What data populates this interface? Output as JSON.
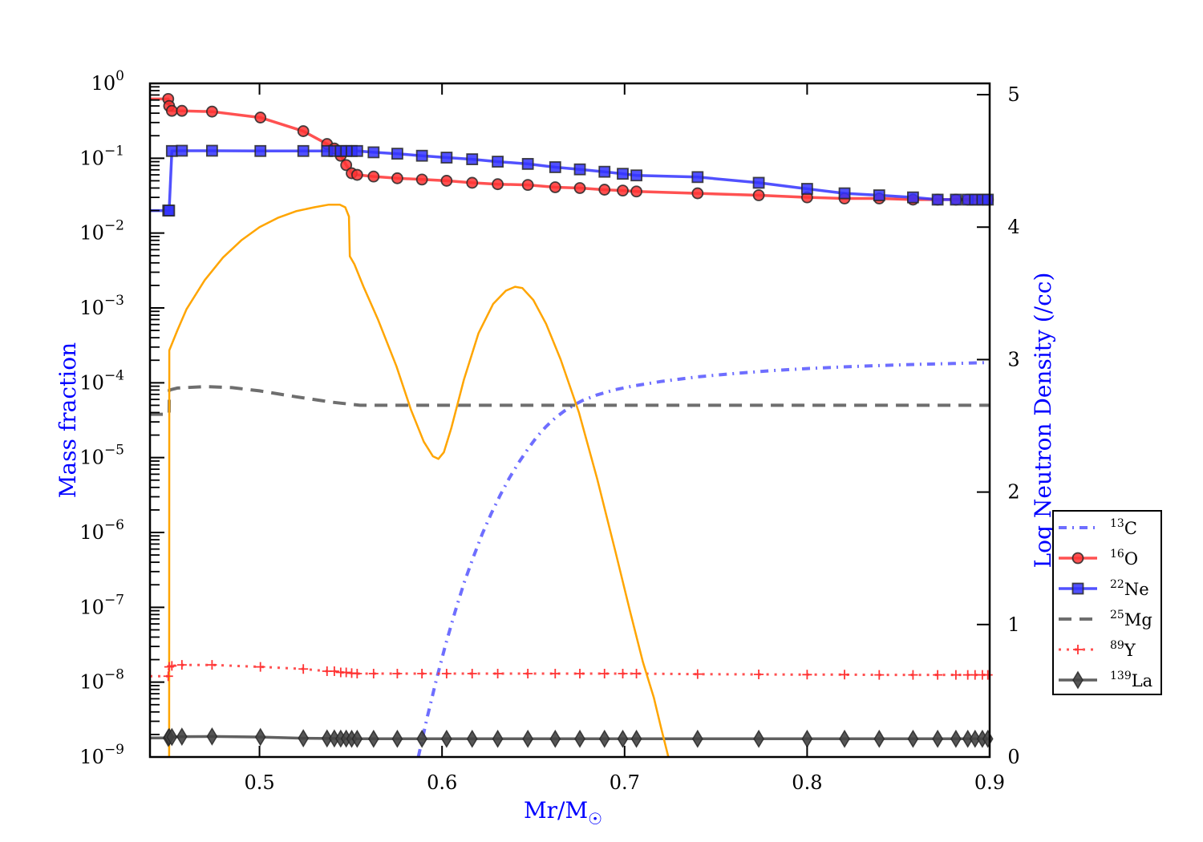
{
  "chart_data": {
    "type": "line",
    "title": "",
    "xlabel": "Mr/M",
    "xlabel_subscript": "☉",
    "ylabel_left": "Mass fraction",
    "ylabel_right": "Log Neutron Density (/cc)",
    "xlim": [
      0.44,
      0.9
    ],
    "ylim_left": [
      1e-09,
      1
    ],
    "yscale_left": "log",
    "ylim_right": [
      0,
      5.085
    ],
    "yscale_right": "linear",
    "grid": false,
    "legend_placement": "center-right-outside",
    "x_ticks": [
      "0.5",
      "0.6",
      "0.7",
      "0.8",
      "0.9"
    ],
    "x_tick_values": [
      0.5,
      0.6,
      0.7,
      0.8,
      0.9
    ],
    "y_left_ticks": [
      {
        "base": "10",
        "exp": "0",
        "value": 0
      },
      {
        "base": "10",
        "exp": "−1",
        "value": -1
      },
      {
        "base": "10",
        "exp": "−2",
        "value": -2
      },
      {
        "base": "10",
        "exp": "−3",
        "value": -3
      },
      {
        "base": "10",
        "exp": "−4",
        "value": -4
      },
      {
        "base": "10",
        "exp": "−5",
        "value": -5
      },
      {
        "base": "10",
        "exp": "−6",
        "value": -6
      },
      {
        "base": "10",
        "exp": "−7",
        "value": -7
      },
      {
        "base": "10",
        "exp": "−8",
        "value": -8
      },
      {
        "base": "10",
        "exp": "−9",
        "value": -9
      }
    ],
    "y_right_ticks": [
      "0",
      "1",
      "2",
      "3",
      "4",
      "5"
    ],
    "y_right_tick_values": [
      0,
      1,
      2,
      3,
      4,
      5
    ],
    "marker_x": [
      0.45,
      0.4505,
      0.452,
      0.4575,
      0.474,
      0.5005,
      0.524,
      0.537,
      0.541,
      0.5445,
      0.5475,
      0.5505,
      0.5535,
      0.5625,
      0.5755,
      0.589,
      0.6025,
      0.6165,
      0.6305,
      0.647,
      0.662,
      0.6755,
      0.689,
      0.699,
      0.7065,
      0.74,
      0.7735,
      0.8,
      0.8205,
      0.8395,
      0.858,
      0.8715,
      0.8815,
      0.888,
      0.892,
      0.896,
      0.899
    ],
    "series": [
      {
        "name": "13C",
        "label_sup": "13",
        "label_el": "C",
        "axis": "left",
        "color": "#5555ff",
        "style": "dashdot",
        "marker": "none",
        "x": [
          0.587,
          0.592,
          0.597,
          0.602,
          0.607,
          0.612,
          0.617,
          0.622,
          0.627,
          0.632,
          0.637,
          0.642,
          0.647,
          0.652,
          0.657,
          0.662,
          0.667,
          0.672,
          0.677,
          0.685,
          0.695,
          0.705,
          0.72,
          0.74,
          0.76,
          0.78,
          0.8,
          0.82,
          0.84,
          0.86,
          0.88,
          0.9
        ],
        "y": [
          1e-09,
          3.5e-09,
          1.1e-08,
          3.2e-08,
          8.5e-08,
          2.1e-07,
          4.6e-07,
          9.5e-07,
          1.8e-06,
          3.2e-06,
          5.4e-06,
          8.6e-06,
          1.3e-05,
          1.9e-05,
          2.6e-05,
          3.4e-05,
          4.2e-05,
          5e-05,
          5.8e-05,
          6.9e-05,
          8.1e-05,
          9.1e-05,
          0.000104,
          0.00012,
          0.000133,
          0.000145,
          0.000155,
          0.000163,
          0.00017,
          0.000176,
          0.000181,
          0.000187
        ]
      },
      {
        "name": "16O",
        "label_sup": "16",
        "label_el": "O",
        "axis": "left",
        "color": "#ff3333",
        "style": "solid",
        "marker": "circle",
        "x": [
          0.44,
          0.45,
          0.4505,
          0.452,
          0.4575,
          0.474,
          0.5005,
          0.524,
          0.537,
          0.541,
          0.5445,
          0.5475,
          0.5505,
          0.5535,
          0.5625,
          0.5755,
          0.589,
          0.6025,
          0.6165,
          0.6305,
          0.647,
          0.662,
          0.6755,
          0.689,
          0.699,
          0.7065,
          0.74,
          0.7735,
          0.8,
          0.8205,
          0.8395,
          0.858,
          0.8715,
          0.8815,
          0.888,
          0.892,
          0.896,
          0.899,
          0.9
        ],
        "y": [
          0.62,
          0.62,
          0.5,
          0.43,
          0.43,
          0.42,
          0.35,
          0.23,
          0.155,
          0.135,
          0.108,
          0.081,
          0.063,
          0.06,
          0.057,
          0.054,
          0.052,
          0.05,
          0.047,
          0.045,
          0.044,
          0.041,
          0.04,
          0.038,
          0.037,
          0.036,
          0.034,
          0.032,
          0.03,
          0.029,
          0.029,
          0.028,
          0.028,
          0.028,
          0.028,
          0.028,
          0.028,
          0.028,
          0.028
        ]
      },
      {
        "name": "22Ne",
        "label_sup": "22",
        "label_el": "Ne",
        "axis": "left",
        "color": "#3333ff",
        "style": "solid",
        "marker": "square",
        "x": [
          0.44,
          0.45,
          0.4505,
          0.452,
          0.4575,
          0.474,
          0.5005,
          0.524,
          0.537,
          0.541,
          0.5445,
          0.5475,
          0.5505,
          0.5535,
          0.5625,
          0.5755,
          0.589,
          0.6025,
          0.6165,
          0.6305,
          0.647,
          0.662,
          0.6755,
          0.689,
          0.699,
          0.7065,
          0.74,
          0.7735,
          0.8,
          0.8205,
          0.8395,
          0.858,
          0.8715,
          0.8815,
          0.888,
          0.892,
          0.896,
          0.899,
          0.9
        ],
        "y": [
          0.02,
          0.02,
          0.02,
          0.125,
          0.126,
          0.126,
          0.125,
          0.125,
          0.125,
          0.125,
          0.125,
          0.125,
          0.125,
          0.125,
          0.12,
          0.115,
          0.108,
          0.102,
          0.097,
          0.09,
          0.084,
          0.076,
          0.071,
          0.066,
          0.062,
          0.059,
          0.056,
          0.047,
          0.039,
          0.034,
          0.032,
          0.03,
          0.028,
          0.028,
          0.028,
          0.028,
          0.028,
          0.028,
          0.028
        ]
      },
      {
        "name": "25Mg",
        "label_sup": "25",
        "label_el": "Mg",
        "axis": "left",
        "color": "#555555",
        "style": "dashed",
        "marker": "none",
        "x": [
          0.44,
          0.4505,
          0.4506,
          0.455,
          0.47,
          0.485,
          0.5,
          0.52,
          0.54,
          0.555,
          0.57,
          0.6,
          0.7,
          0.8,
          0.9
        ],
        "y": [
          3.8e-05,
          3.8e-05,
          8e-05,
          8.5e-05,
          8.9e-05,
          8.6e-05,
          7.8e-05,
          6.5e-05,
          5.5e-05,
          5e-05,
          5e-05,
          5e-05,
          5e-05,
          5e-05,
          5e-05
        ]
      },
      {
        "name": "89Y",
        "label_sup": "89",
        "label_el": "Y",
        "axis": "left",
        "color": "#ff3333",
        "style": "dotted",
        "marker": "plus",
        "x": [
          0.44,
          0.45,
          0.4505,
          0.452,
          0.4575,
          0.474,
          0.5005,
          0.524,
          0.537,
          0.541,
          0.5445,
          0.5475,
          0.5505,
          0.5535,
          0.5625,
          0.5755,
          0.589,
          0.6025,
          0.6165,
          0.6305,
          0.647,
          0.662,
          0.6755,
          0.689,
          0.699,
          0.7065,
          0.74,
          0.7735,
          0.8,
          0.8205,
          0.8395,
          0.858,
          0.8715,
          0.8815,
          0.888,
          0.892,
          0.896,
          0.899,
          0.9
        ],
        "y": [
          1.2e-08,
          1.2e-08,
          1.6e-08,
          1.65e-08,
          1.7e-08,
          1.7e-08,
          1.6e-08,
          1.5e-08,
          1.4e-08,
          1.4e-08,
          1.35e-08,
          1.35e-08,
          1.32e-08,
          1.3e-08,
          1.3e-08,
          1.3e-08,
          1.3e-08,
          1.3e-08,
          1.3e-08,
          1.3e-08,
          1.3e-08,
          1.3e-08,
          1.3e-08,
          1.3e-08,
          1.3e-08,
          1.3e-08,
          1.28e-08,
          1.27e-08,
          1.26e-08,
          1.26e-08,
          1.25e-08,
          1.25e-08,
          1.25e-08,
          1.25e-08,
          1.25e-08,
          1.25e-08,
          1.25e-08,
          1.25e-08,
          1.25e-08
        ]
      },
      {
        "name": "139La",
        "label_sup": "139",
        "label_el": "La",
        "axis": "left",
        "color": "#444444",
        "style": "solid",
        "marker": "diamond",
        "x": [
          0.44,
          0.45,
          0.4505,
          0.452,
          0.4575,
          0.474,
          0.5005,
          0.524,
          0.537,
          0.541,
          0.5445,
          0.5475,
          0.5505,
          0.5535,
          0.5625,
          0.5755,
          0.589,
          0.6025,
          0.6165,
          0.6305,
          0.647,
          0.662,
          0.6755,
          0.689,
          0.699,
          0.7065,
          0.74,
          0.7735,
          0.8,
          0.8205,
          0.8395,
          0.858,
          0.8715,
          0.8815,
          0.888,
          0.892,
          0.896,
          0.899,
          0.9
        ],
        "y": [
          1.8e-09,
          1.8e-09,
          1.85e-09,
          1.85e-09,
          1.87e-09,
          1.88e-09,
          1.85e-09,
          1.78e-09,
          1.77e-09,
          1.77e-09,
          1.76e-09,
          1.76e-09,
          1.75e-09,
          1.75e-09,
          1.75e-09,
          1.75e-09,
          1.75e-09,
          1.75e-09,
          1.75e-09,
          1.75e-09,
          1.75e-09,
          1.75e-09,
          1.75e-09,
          1.75e-09,
          1.75e-09,
          1.75e-09,
          1.75e-09,
          1.75e-09,
          1.75e-09,
          1.75e-09,
          1.75e-09,
          1.75e-09,
          1.75e-09,
          1.75e-09,
          1.75e-09,
          1.75e-09,
          1.75e-09,
          1.75e-09,
          1.75e-09
        ]
      },
      {
        "name": "Log neutron density",
        "in_legend": false,
        "axis": "right",
        "color": "#ffa500",
        "style": "solid",
        "marker": "none",
        "x": [
          0.4505,
          0.4506,
          0.455,
          0.46,
          0.47,
          0.48,
          0.49,
          0.5,
          0.51,
          0.52,
          0.53,
          0.538,
          0.544,
          0.547,
          0.549,
          0.5495,
          0.552,
          0.557,
          0.565,
          0.575,
          0.583,
          0.59,
          0.595,
          0.598,
          0.601,
          0.605,
          0.612,
          0.62,
          0.628,
          0.635,
          0.64,
          0.644,
          0.65,
          0.657,
          0.665,
          0.675,
          0.685,
          0.695,
          0.703,
          0.71,
          0.716,
          0.72,
          0.724
        ],
        "y": [
          0,
          3.07,
          3.22,
          3.38,
          3.6,
          3.77,
          3.9,
          4.0,
          4.07,
          4.12,
          4.15,
          4.17,
          4.17,
          4.15,
          4.08,
          3.78,
          3.72,
          3.55,
          3.3,
          2.95,
          2.62,
          2.38,
          2.27,
          2.25,
          2.3,
          2.48,
          2.85,
          3.2,
          3.42,
          3.52,
          3.55,
          3.54,
          3.45,
          3.27,
          3.0,
          2.6,
          2.1,
          1.55,
          1.1,
          0.72,
          0.45,
          0.22,
          0
        ]
      }
    ]
  }
}
